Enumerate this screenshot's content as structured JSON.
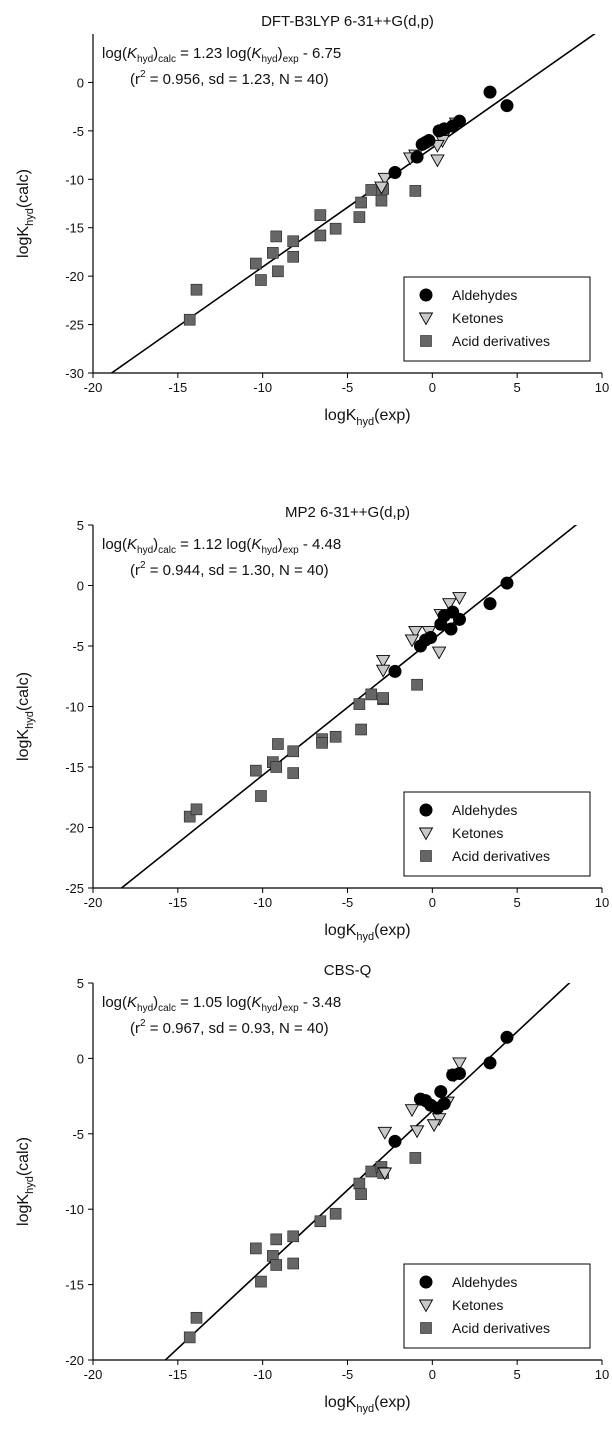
{
  "chart_data": [
    {
      "type": "scatter",
      "title": "DFT-B3LYP 6-31++G(d,p)",
      "xlabel": {
        "main": "logK",
        "sub": "hyd",
        "tail": "(exp)"
      },
      "ylabel": {
        "main": "logK",
        "sub": "hyd",
        "tail": "(calc)"
      },
      "xlim": [
        -20,
        10
      ],
      "ylim": [
        -30,
        5
      ],
      "xticks": [
        "-20",
        "-15",
        "-10",
        "-5",
        "0",
        "5",
        "10"
      ],
      "yticks": [
        "-30",
        "-25",
        "-20",
        "-15",
        "-10",
        "-5",
        "0"
      ],
      "fit": {
        "slope": 1.23,
        "intercept": -6.75
      },
      "equation": {
        "line1": [
          "log(",
          "K",
          "hyd",
          ")",
          "calc",
          " = 1.23 log(",
          "K",
          "hyd",
          ")",
          "exp",
          " - 6.75"
        ],
        "line2_pre": "(r",
        "line2_sup": "2",
        "line2_post": " = 0.956, sd = 1.23, N = 40)"
      },
      "legend": {
        "position": "bottom-right",
        "entries": [
          "Aldehydes",
          "Ketones",
          "Acid derivatives"
        ]
      },
      "series": [
        {
          "name": "Aldehydes",
          "marker": "circle",
          "points": [
            [
              3.4,
              -1.0
            ],
            [
              4.4,
              -2.4
            ],
            [
              1.6,
              -4.0
            ],
            [
              1.2,
              -4.5
            ],
            [
              0.7,
              -4.8
            ],
            [
              0.4,
              -5.0
            ],
            [
              -0.2,
              -6.0
            ],
            [
              -0.4,
              -6.2
            ],
            [
              -0.6,
              -6.4
            ],
            [
              -0.9,
              -7.7
            ],
            [
              -2.2,
              -9.3
            ]
          ]
        },
        {
          "name": "Ketones",
          "marker": "triangle-down",
          "points": [
            [
              1.4,
              -4.2
            ],
            [
              0.8,
              -5.2
            ],
            [
              0.6,
              -6.0
            ],
            [
              0.3,
              -6.5
            ],
            [
              0.3,
              -8.0
            ],
            [
              -1.0,
              -7.5
            ],
            [
              -1.3,
              -7.8
            ],
            [
              -2.8,
              -9.9
            ],
            [
              -3.0,
              -10.8
            ]
          ]
        },
        {
          "name": "Acid derivatives",
          "marker": "square",
          "points": [
            [
              -14.3,
              -24.5
            ],
            [
              -13.9,
              -21.4
            ],
            [
              -10.4,
              -18.7
            ],
            [
              -10.1,
              -20.4
            ],
            [
              -9.4,
              -17.6
            ],
            [
              -9.2,
              -15.9
            ],
            [
              -9.1,
              -19.5
            ],
            [
              -8.2,
              -18.0
            ],
            [
              -8.2,
              -16.4
            ],
            [
              -6.6,
              -13.7
            ],
            [
              -6.6,
              -15.8
            ],
            [
              -5.7,
              -15.1
            ],
            [
              -4.2,
              -12.4
            ],
            [
              -4.3,
              -13.9
            ],
            [
              -3.6,
              -11.1
            ],
            [
              -2.9,
              -11.0
            ],
            [
              -3.0,
              -12.2
            ],
            [
              -1.0,
              -11.2
            ]
          ]
        }
      ]
    },
    {
      "type": "scatter",
      "title": "MP2 6-31++G(d,p)",
      "xlabel": {
        "main": "logK",
        "sub": "hyd",
        "tail": "(exp)"
      },
      "ylabel": {
        "main": "logK",
        "sub": "hyd",
        "tail": "(calc)"
      },
      "xlim": [
        -20,
        10
      ],
      "ylim": [
        -25,
        5
      ],
      "xticks": [
        "-20",
        "-15",
        "-10",
        "-5",
        "0",
        "5",
        "10"
      ],
      "yticks": [
        "-25",
        "-20",
        "-15",
        "-10",
        "-5",
        "0",
        "5"
      ],
      "fit": {
        "slope": 1.12,
        "intercept": -4.48
      },
      "equation": {
        "line1": [
          "log(",
          "K",
          "hyd",
          ")",
          "calc",
          " = 1.12 log(",
          "K",
          "hyd",
          ")",
          "exp",
          " - 4.48"
        ],
        "line2_pre": "(r",
        "line2_sup": "2",
        "line2_post": " = 0.944, sd = 1.30, N = 40)"
      },
      "legend": {
        "position": "bottom-right",
        "entries": [
          "Aldehydes",
          "Ketones",
          "Acid derivatives"
        ]
      },
      "series": [
        {
          "name": "Aldehydes",
          "marker": "circle",
          "points": [
            [
              4.4,
              0.2
            ],
            [
              3.4,
              -1.5
            ],
            [
              1.6,
              -2.8
            ],
            [
              1.2,
              -2.2
            ],
            [
              1.1,
              -3.6
            ],
            [
              0.7,
              -2.5
            ],
            [
              0.5,
              -3.2
            ],
            [
              -0.1,
              -4.3
            ],
            [
              -0.4,
              -4.5
            ],
            [
              -0.7,
              -5.0
            ],
            [
              -2.2,
              -7.1
            ]
          ]
        },
        {
          "name": "Ketones",
          "marker": "triangle-down",
          "points": [
            [
              1.6,
              -1.0
            ],
            [
              1.0,
              -1.5
            ],
            [
              0.5,
              -2.4
            ],
            [
              0.4,
              -5.5
            ],
            [
              -0.2,
              -3.8
            ],
            [
              -1.0,
              -3.8
            ],
            [
              -1.2,
              -4.5
            ],
            [
              -2.9,
              -6.2
            ],
            [
              -2.9,
              -7.0
            ]
          ]
        },
        {
          "name": "Acid derivatives",
          "marker": "square",
          "points": [
            [
              -14.3,
              -19.1
            ],
            [
              -13.9,
              -18.5
            ],
            [
              -10.4,
              -15.3
            ],
            [
              -10.1,
              -17.4
            ],
            [
              -9.4,
              -14.6
            ],
            [
              -9.1,
              -13.1
            ],
            [
              -9.2,
              -15.0
            ],
            [
              -8.2,
              -15.5
            ],
            [
              -8.2,
              -13.7
            ],
            [
              -6.5,
              -12.7
            ],
            [
              -6.5,
              -13.0
            ],
            [
              -5.7,
              -12.5
            ],
            [
              -4.2,
              -11.9
            ],
            [
              -4.3,
              -9.8
            ],
            [
              -3.6,
              -9.0
            ],
            [
              -2.9,
              -9.4
            ],
            [
              -2.9,
              -9.3
            ],
            [
              -0.9,
              -8.2
            ]
          ]
        }
      ]
    },
    {
      "type": "scatter",
      "title": "CBS-Q",
      "xlabel": {
        "main": "logK",
        "sub": "hyd",
        "tail": "(exp)"
      },
      "ylabel": {
        "main": "logK",
        "sub": "hyd",
        "tail": "(calc)"
      },
      "xlim": [
        -20,
        10
      ],
      "ylim": [
        -20,
        5
      ],
      "xticks": [
        "-20",
        "-15",
        "-10",
        "-5",
        "0",
        "5",
        "10"
      ],
      "yticks": [
        "-20",
        "-15",
        "-10",
        "-5",
        "0",
        "5"
      ],
      "fit": {
        "slope": 1.05,
        "intercept": -3.48
      },
      "equation": {
        "line1": [
          "log(",
          "K",
          "hyd",
          ")",
          "calc",
          " = 1.05 log(",
          "K",
          "hyd",
          ")",
          "exp",
          " - 3.48"
        ],
        "line2_pre": "(r",
        "line2_sup": "2",
        "line2_post": " = 0.967, sd = 0.93, N = 40)"
      },
      "legend": {
        "position": "bottom-right",
        "entries": [
          "Aldehydes",
          "Ketones",
          "Acid derivatives"
        ]
      },
      "series": [
        {
          "name": "Aldehydes",
          "marker": "circle",
          "points": [
            [
              4.4,
              1.4
            ],
            [
              3.4,
              -0.3
            ],
            [
              1.6,
              -1.0
            ],
            [
              1.2,
              -1.1
            ],
            [
              0.7,
              -3.0
            ],
            [
              0.5,
              -2.2
            ],
            [
              0.3,
              -3.3
            ],
            [
              -0.1,
              -3.1
            ],
            [
              -0.4,
              -2.8
            ],
            [
              -0.7,
              -2.7
            ],
            [
              -2.2,
              -5.5
            ]
          ]
        },
        {
          "name": "Ketones",
          "marker": "triangle-down",
          "points": [
            [
              1.6,
              -0.3
            ],
            [
              1.3,
              -1.1
            ],
            [
              0.9,
              -2.9
            ],
            [
              0.4,
              -4.0
            ],
            [
              0.1,
              -4.4
            ],
            [
              -0.9,
              -4.8
            ],
            [
              -1.2,
              -3.4
            ],
            [
              -2.8,
              -4.9
            ],
            [
              -2.8,
              -7.6
            ]
          ]
        },
        {
          "name": "Acid derivatives",
          "marker": "square",
          "points": [
            [
              -14.3,
              -18.5
            ],
            [
              -13.9,
              -17.2
            ],
            [
              -10.4,
              -12.6
            ],
            [
              -10.1,
              -14.8
            ],
            [
              -9.4,
              -13.1
            ],
            [
              -9.2,
              -12.0
            ],
            [
              -9.2,
              -13.7
            ],
            [
              -8.2,
              -13.6
            ],
            [
              -8.2,
              -11.8
            ],
            [
              -6.6,
              -10.8
            ],
            [
              -5.7,
              -10.3
            ],
            [
              -4.3,
              -8.3
            ],
            [
              -4.2,
              -9.0
            ],
            [
              -3.6,
              -7.5
            ],
            [
              -3.0,
              -7.2
            ],
            [
              -2.9,
              -7.6
            ],
            [
              -1.0,
              -6.6
            ]
          ]
        }
      ]
    }
  ]
}
